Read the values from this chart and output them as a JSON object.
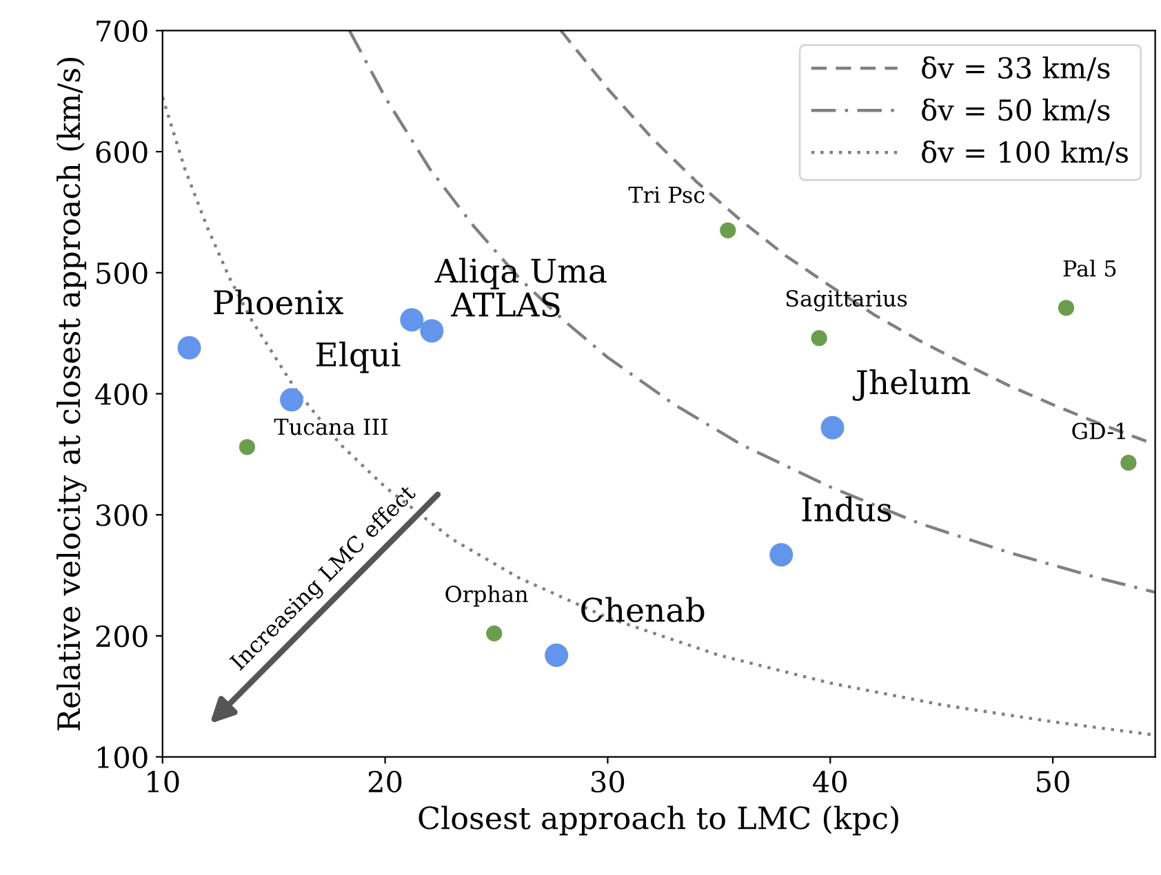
{
  "chart_data": {
    "type": "scatter",
    "xlabel": "Closest approach to LMC (kpc)",
    "ylabel": "Relative velocity at closest approach (km/s)",
    "xlim": [
      10,
      54.6
    ],
    "ylim": [
      100,
      700
    ],
    "xticks": [
      10,
      20,
      30,
      40,
      50
    ],
    "yticks": [
      100,
      200,
      300,
      400,
      500,
      600,
      700
    ],
    "grid": false,
    "legend": "top right",
    "series": [
      {
        "color": "#6495ed",
        "marker": "circle",
        "x": [
          11.2,
          15.8,
          21.2,
          22.1,
          40.1,
          37.8,
          27.7
        ],
        "values": [
          438,
          395,
          461,
          452,
          372,
          267,
          184
        ]
      },
      {
        "color": "#6a9e4c",
        "marker": "circle",
        "x": [
          13.8,
          24.9,
          35.4,
          39.5,
          50.6,
          53.4
        ],
        "values": [
          356,
          202,
          535,
          446,
          471,
          343
        ]
      },
      {
        "type": "line",
        "name": "δv = 33 km/s",
        "color": "#808080",
        "line_style": "dashed",
        "x": [
          27.9,
          30,
          32,
          34,
          36,
          38,
          40,
          42,
          44,
          46,
          48,
          50,
          52,
          54.6
        ],
        "values": [
          700,
          652,
          611,
          575,
          543,
          514,
          489,
          465,
          444,
          425,
          407,
          391,
          376,
          358
        ]
      },
      {
        "type": "line",
        "name": "δv = 50 km/s",
        "color": "#808080",
        "line_style": "dashdot",
        "x": [
          18.4,
          20,
          22,
          24,
          26,
          28,
          30,
          33,
          36,
          40,
          44,
          48,
          52,
          54.6
        ],
        "values": [
          700,
          645,
          586,
          538,
          496,
          461,
          430,
          391,
          358,
          323,
          293,
          269,
          248,
          236
        ]
      },
      {
        "type": "line",
        "name": "δv = 100 km/s",
        "color": "#808080",
        "line_style": "dotted",
        "x": [
          10,
          11,
          12,
          13,
          14,
          16,
          18,
          20,
          23,
          26,
          30,
          35,
          40,
          45,
          50,
          54.6
        ],
        "values": [
          645,
          586,
          538,
          496,
          461,
          403,
          358,
          323,
          280,
          248,
          215,
          184,
          161,
          143,
          129,
          118
        ]
      }
    ],
    "annotations": [
      {
        "text": "Phoenix",
        "x": 11.2,
        "y": 438
      },
      {
        "text": "Elqui",
        "x": 15.8,
        "y": 395
      },
      {
        "text": "Aliqa Uma",
        "x": 21.2,
        "y": 461
      },
      {
        "text": "ATLAS",
        "x": 22.1,
        "y": 452
      },
      {
        "text": "Jhelum",
        "x": 40.1,
        "y": 372
      },
      {
        "text": "Indus",
        "x": 37.8,
        "y": 267
      },
      {
        "text": "Chenab",
        "x": 27.7,
        "y": 184
      },
      {
        "text": "Tucana III",
        "x": 13.8,
        "y": 356
      },
      {
        "text": "Orphan",
        "x": 24.9,
        "y": 202
      },
      {
        "text": "Tri Psc",
        "x": 35.4,
        "y": 535
      },
      {
        "text": "Sagittarius",
        "x": 39.5,
        "y": 446
      },
      {
        "text": "Pal 5",
        "x": 50.6,
        "y": 471
      },
      {
        "text": "GD-1",
        "x": 53.4,
        "y": 343
      },
      "Increasing LMC effect"
    ]
  }
}
